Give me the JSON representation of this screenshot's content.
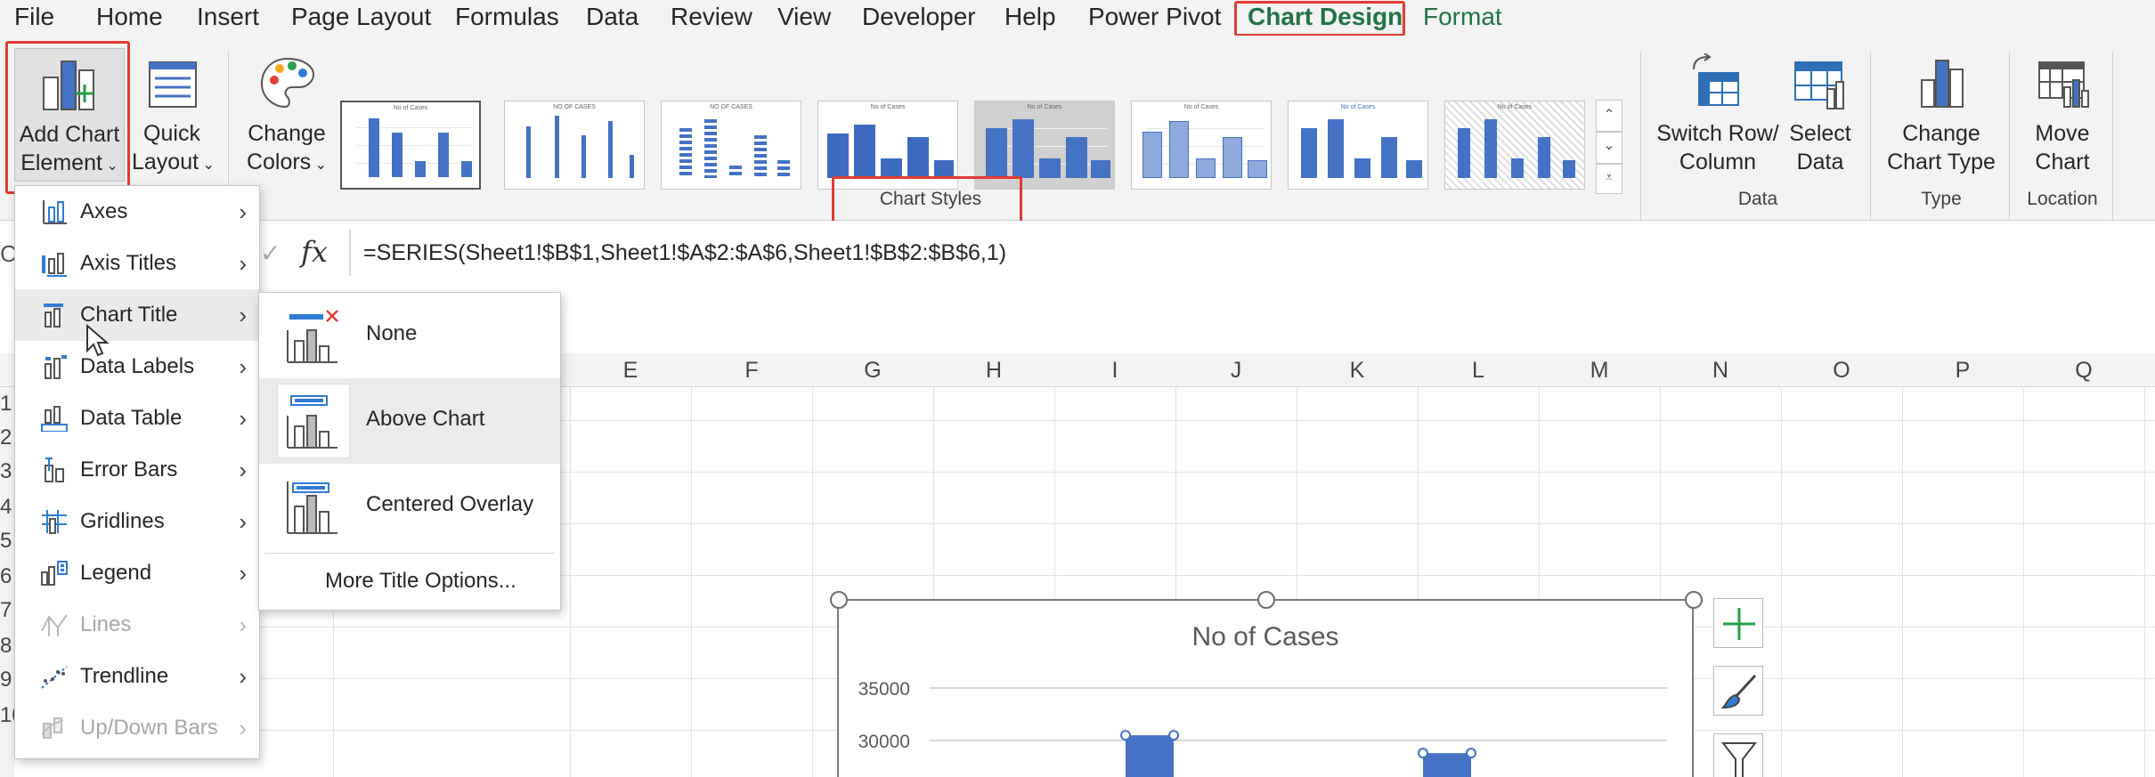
{
  "menubar": {
    "tabs": [
      "File",
      "Home",
      "Insert",
      "Page Layout",
      "Formulas",
      "Data",
      "Review",
      "View",
      "Developer",
      "Help",
      "Power Pivot",
      "Chart Design",
      "Format"
    ]
  },
  "ribbon": {
    "add_chart_element": {
      "line1": "Add Chart",
      "line2": "Element"
    },
    "quick_layout": {
      "line1": "Quick",
      "line2": "Layout"
    },
    "change_colors": {
      "line1": "Change",
      "line2": "Colors"
    },
    "chart_styles_label": "Chart Styles",
    "switch_row_column": {
      "line1": "Switch Row/",
      "line2": "Column"
    },
    "select_data": {
      "line1": "Select",
      "line2": "Data"
    },
    "data_group_label": "Data",
    "change_chart_type": {
      "line1": "Change",
      "line2": "Chart Type"
    },
    "type_group_label": "Type",
    "move_chart": {
      "line1": "Move",
      "line2": "Chart"
    },
    "location_group_label": "Location",
    "style_thumb_titles": [
      "No of Cases",
      "NO OF CASES",
      "NO OF CASES",
      "No of Cases",
      "No of Cases",
      "No of Cases",
      "No of Cases",
      "No of Cases"
    ]
  },
  "formula_bar": {
    "fx": "fx",
    "formula": "=SERIES(Sheet1!$B$1,Sheet1!$A$2:$A$6,Sheet1!$B$2:$B$6,1)"
  },
  "columns": [
    "E",
    "F",
    "G",
    "H",
    "I",
    "J",
    "K",
    "L",
    "M",
    "N",
    "O",
    "P",
    "Q"
  ],
  "rows": [
    "1",
    "2",
    "3",
    "4",
    "5",
    "6",
    "7",
    "8",
    "9",
    "10"
  ],
  "add_element_menu": {
    "items": [
      {
        "label": "Axes",
        "icon": "axes-icon",
        "disabled": false
      },
      {
        "label": "Axis Titles",
        "icon": "axis-titles-icon",
        "disabled": false
      },
      {
        "label": "Chart Title",
        "icon": "chart-title-icon",
        "disabled": false
      },
      {
        "label": "Data Labels",
        "icon": "data-labels-icon",
        "disabled": false
      },
      {
        "label": "Data Table",
        "icon": "data-table-icon",
        "disabled": false
      },
      {
        "label": "Error Bars",
        "icon": "error-bars-icon",
        "disabled": false
      },
      {
        "label": "Gridlines",
        "icon": "gridlines-icon",
        "disabled": false
      },
      {
        "label": "Legend",
        "icon": "legend-icon",
        "disabled": false
      },
      {
        "label": "Lines",
        "icon": "lines-icon",
        "disabled": true
      },
      {
        "label": "Trendline",
        "icon": "trendline-icon",
        "disabled": false
      },
      {
        "label": "Up/Down Bars",
        "icon": "up-down-bars-icon",
        "disabled": true
      }
    ]
  },
  "chart_title_submenu": {
    "none": "None",
    "above_chart": "Above Chart",
    "centered_overlay": "Centered Overlay",
    "more_options": "More Title Options..."
  },
  "chart": {
    "title": "No of Cases",
    "y_ticks": [
      "35000",
      "30000"
    ]
  },
  "chart_data": {
    "type": "bar",
    "title": "No of Cases",
    "ylabel": "",
    "xlabel": "",
    "y_ticks": [
      35000,
      30000
    ],
    "visible_bar_tops": [
      30500,
      28800
    ]
  },
  "colors": {
    "accent_green": "#217346",
    "highlight_red": "#e03c31",
    "bar_blue": "#4472c4"
  }
}
